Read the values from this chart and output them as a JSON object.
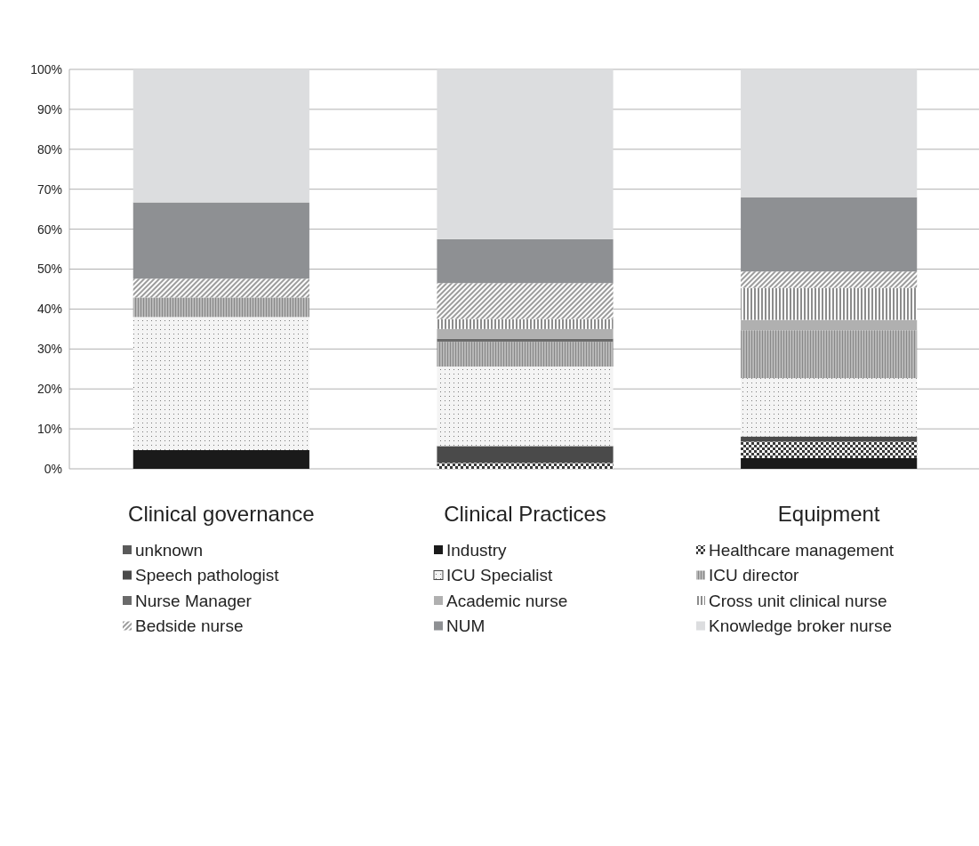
{
  "chart_data": {
    "type": "bar",
    "stacked": true,
    "categories": [
      "Clinical governance",
      "Clinical Practices",
      "Equipment"
    ],
    "series": [
      {
        "name": "unknown",
        "color": "#5a5a5a",
        "values": [
          0,
          0,
          0
        ]
      },
      {
        "name": "Industry",
        "color": "#1a1a1a",
        "values": [
          4.7,
          0,
          2.7
        ]
      },
      {
        "name": "Healthcare management",
        "color": "#3a3a3a",
        "values": [
          0,
          1.5,
          4.1
        ]
      },
      {
        "name": "Speech pathologist",
        "color": "#4a4a4a",
        "values": [
          0,
          4.2,
          1.3
        ]
      },
      {
        "name": "ICU Specialist",
        "color": "#f4f4f4",
        "values": [
          33.3,
          19.9,
          14.6
        ]
      },
      {
        "name": "ICU director",
        "color": "#b8b8b8",
        "values": [
          4.9,
          6.2,
          12.0
        ]
      },
      {
        "name": "Nurse Manager",
        "color": "#6a6a6a",
        "values": [
          0,
          0.8,
          0
        ]
      },
      {
        "name": "Academic nurse",
        "color": "#b0b0b0",
        "values": [
          0,
          2.4,
          2.6
        ]
      },
      {
        "name": "Cross unit clinical nurse",
        "color": "#8c8c8c",
        "values": [
          0,
          2.5,
          8.0
        ]
      },
      {
        "name": "Bedside nurse",
        "color": "#9c9c9c",
        "values": [
          4.7,
          9.0,
          4.1
        ]
      },
      {
        "name": "NUM",
        "color": "#8e9093",
        "values": [
          19.1,
          11.0,
          18.6
        ]
      },
      {
        "name": "Knowledge broker nurse",
        "color": "#dcdddf",
        "values": [
          33.3,
          42.5,
          32.0
        ]
      }
    ],
    "ylim": [
      0,
      100
    ],
    "yticks": [
      {
        "value": 0,
        "label": "0%"
      },
      {
        "value": 10,
        "label": "10%"
      },
      {
        "value": 20,
        "label": "20%"
      },
      {
        "value": 30,
        "label": "30%"
      },
      {
        "value": 40,
        "label": "40%"
      },
      {
        "value": 50,
        "label": "50%"
      },
      {
        "value": 60,
        "label": "60%"
      },
      {
        "value": 70,
        "label": "70%"
      },
      {
        "value": 80,
        "label": "80%"
      },
      {
        "value": 90,
        "label": "90%"
      },
      {
        "value": 100,
        "label": "100%"
      }
    ],
    "grid": "y",
    "legend": "bottom"
  }
}
